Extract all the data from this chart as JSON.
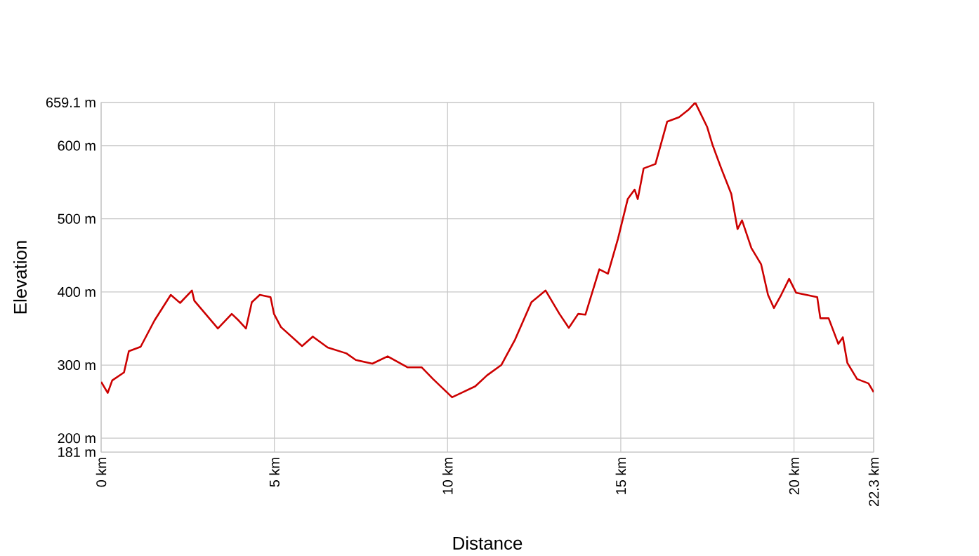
{
  "chart_data": {
    "type": "line",
    "xlabel": "Distance",
    "ylabel": "Elevation",
    "xlim": [
      0,
      22.3
    ],
    "ylim": [
      181,
      659.1
    ],
    "xticks": [
      {
        "value": 0,
        "label": "0 km"
      },
      {
        "value": 5,
        "label": "5 km"
      },
      {
        "value": 10,
        "label": "10 km"
      },
      {
        "value": 15,
        "label": "15 km"
      },
      {
        "value": 20,
        "label": "20 km"
      },
      {
        "value": 22.3,
        "label": "22.3 km"
      }
    ],
    "yticks": [
      {
        "value": 181,
        "label": "181 m"
      },
      {
        "value": 200,
        "label": "200 m"
      },
      {
        "value": 300,
        "label": "300 m"
      },
      {
        "value": 400,
        "label": "400 m"
      },
      {
        "value": 500,
        "label": "500 m"
      },
      {
        "value": 600,
        "label": "600 m"
      },
      {
        "value": 659.1,
        "label": "659.1 m"
      }
    ],
    "grid": true,
    "marker": "none",
    "line_style": "solid",
    "series": [
      {
        "color": "#cc0000",
        "x": [
          0,
          0.19,
          0.32,
          0.66,
          0.8,
          1.14,
          1.54,
          2.01,
          2.28,
          2.62,
          2.69,
          3.37,
          3.77,
          3.97,
          4.18,
          4.35,
          4.58,
          4.89,
          4.99,
          5.19,
          5.8,
          6.11,
          6.54,
          7.08,
          7.35,
          7.83,
          8.27,
          8.84,
          9.25,
          9.58,
          10.13,
          10.4,
          10.8,
          11.14,
          11.55,
          11.95,
          12.42,
          12.83,
          13.23,
          13.5,
          13.77,
          13.98,
          14.38,
          14.63,
          14.92,
          15.2,
          15.4,
          15.49,
          15.66,
          16.0,
          16.34,
          16.68,
          16.95,
          17.15,
          17.49,
          17.65,
          17.9,
          18.19,
          18.37,
          18.5,
          18.77,
          19.05,
          19.25,
          19.42,
          19.63,
          19.86,
          20.06,
          20.67,
          20.76,
          21.0,
          21.28,
          21.41,
          21.54,
          21.82,
          22.15,
          22.3
        ],
        "values": [
          277,
          262,
          279,
          290,
          319,
          325,
          361,
          396,
          385,
          402,
          388,
          350,
          370,
          361,
          350,
          386,
          396,
          393,
          370,
          352,
          326,
          339,
          324,
          316,
          307,
          302,
          312,
          297,
          297,
          281,
          256,
          262,
          271,
          286,
          300,
          335,
          386,
          402,
          370,
          351,
          370,
          369,
          431,
          425,
          473,
          527,
          540,
          527,
          569,
          575,
          633,
          639,
          649,
          659,
          626,
          601,
          569,
          534,
          486,
          498,
          460,
          438,
          396,
          378,
          396,
          418,
          399,
          393,
          364,
          364,
          329,
          338,
          303,
          281,
          275,
          263
        ]
      }
    ]
  }
}
